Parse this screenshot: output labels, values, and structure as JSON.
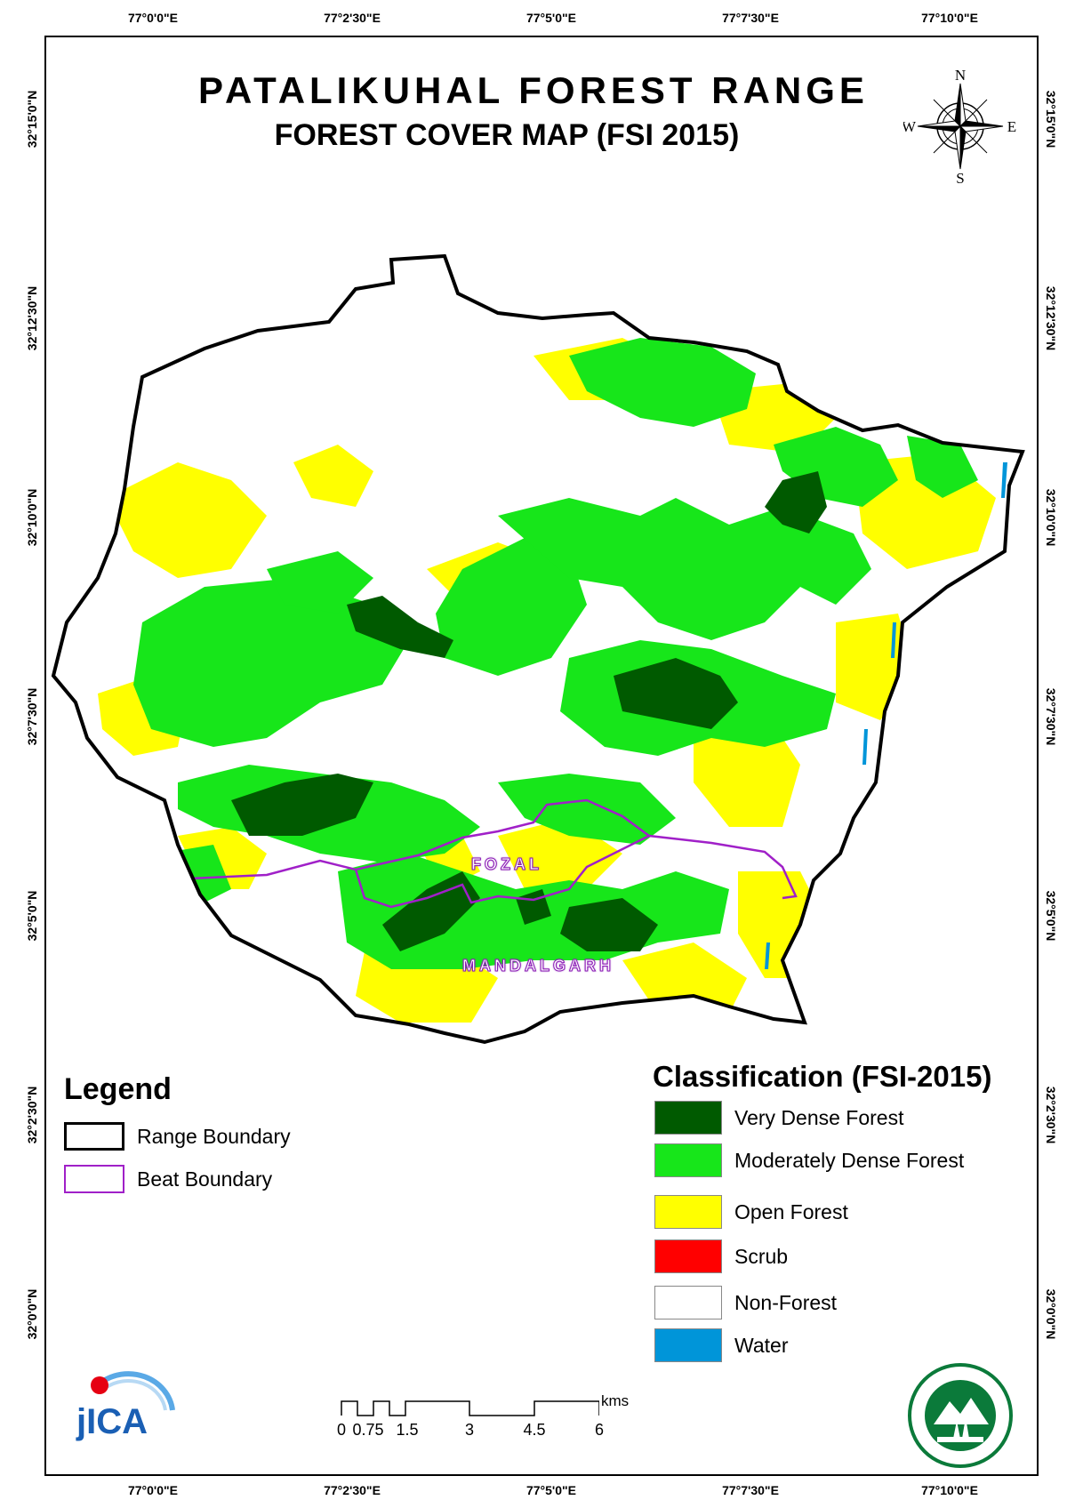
{
  "map": {
    "title": "PATALIKUHAL FOREST RANGE",
    "subtitle": "FOREST COVER MAP (FSI 2015)",
    "longitude_ticks": [
      "77°0'0\"E",
      "77°2'30\"E",
      "77°5'0\"E",
      "77°7'30\"E",
      "77°10'0\"E"
    ],
    "latitude_ticks": [
      "32°15'0\"N",
      "32°12'30\"N",
      "32°10'0\"N",
      "32°7'30\"N",
      "32°5'0\"N",
      "32°2'30\"N",
      "32°0'0\"N"
    ],
    "beats": [
      {
        "name": "FOZAL"
      },
      {
        "name": "MANDALGARH"
      }
    ],
    "compass": {
      "n": "N",
      "s": "S",
      "e": "E",
      "w": "W"
    }
  },
  "legend": {
    "title": "Legend",
    "items": [
      {
        "label": "Range Boundary",
        "color": "#000000"
      },
      {
        "label": "Beat Boundary",
        "color": "#a020c8"
      }
    ]
  },
  "classification": {
    "title": "Classification (FSI-2015)",
    "items": [
      {
        "label": "Very Dense Forest",
        "color": "#005a00"
      },
      {
        "label": "Moderately Dense Forest",
        "color": "#17e61a"
      },
      {
        "label": "Open Forest",
        "color": "#ffff00"
      },
      {
        "label": "Scrub",
        "color": "#ff0000"
      },
      {
        "label": "Non-Forest",
        "color": "#ffffff"
      },
      {
        "label": "Water",
        "color": "#0095d9"
      }
    ]
  },
  "scale_bar": {
    "labels": [
      "0",
      "0.75",
      "1.5",
      "3",
      "4.5",
      "6"
    ],
    "unit": "kms"
  },
  "logos": {
    "jica": "JICA",
    "seal": "forest-department-seal"
  }
}
